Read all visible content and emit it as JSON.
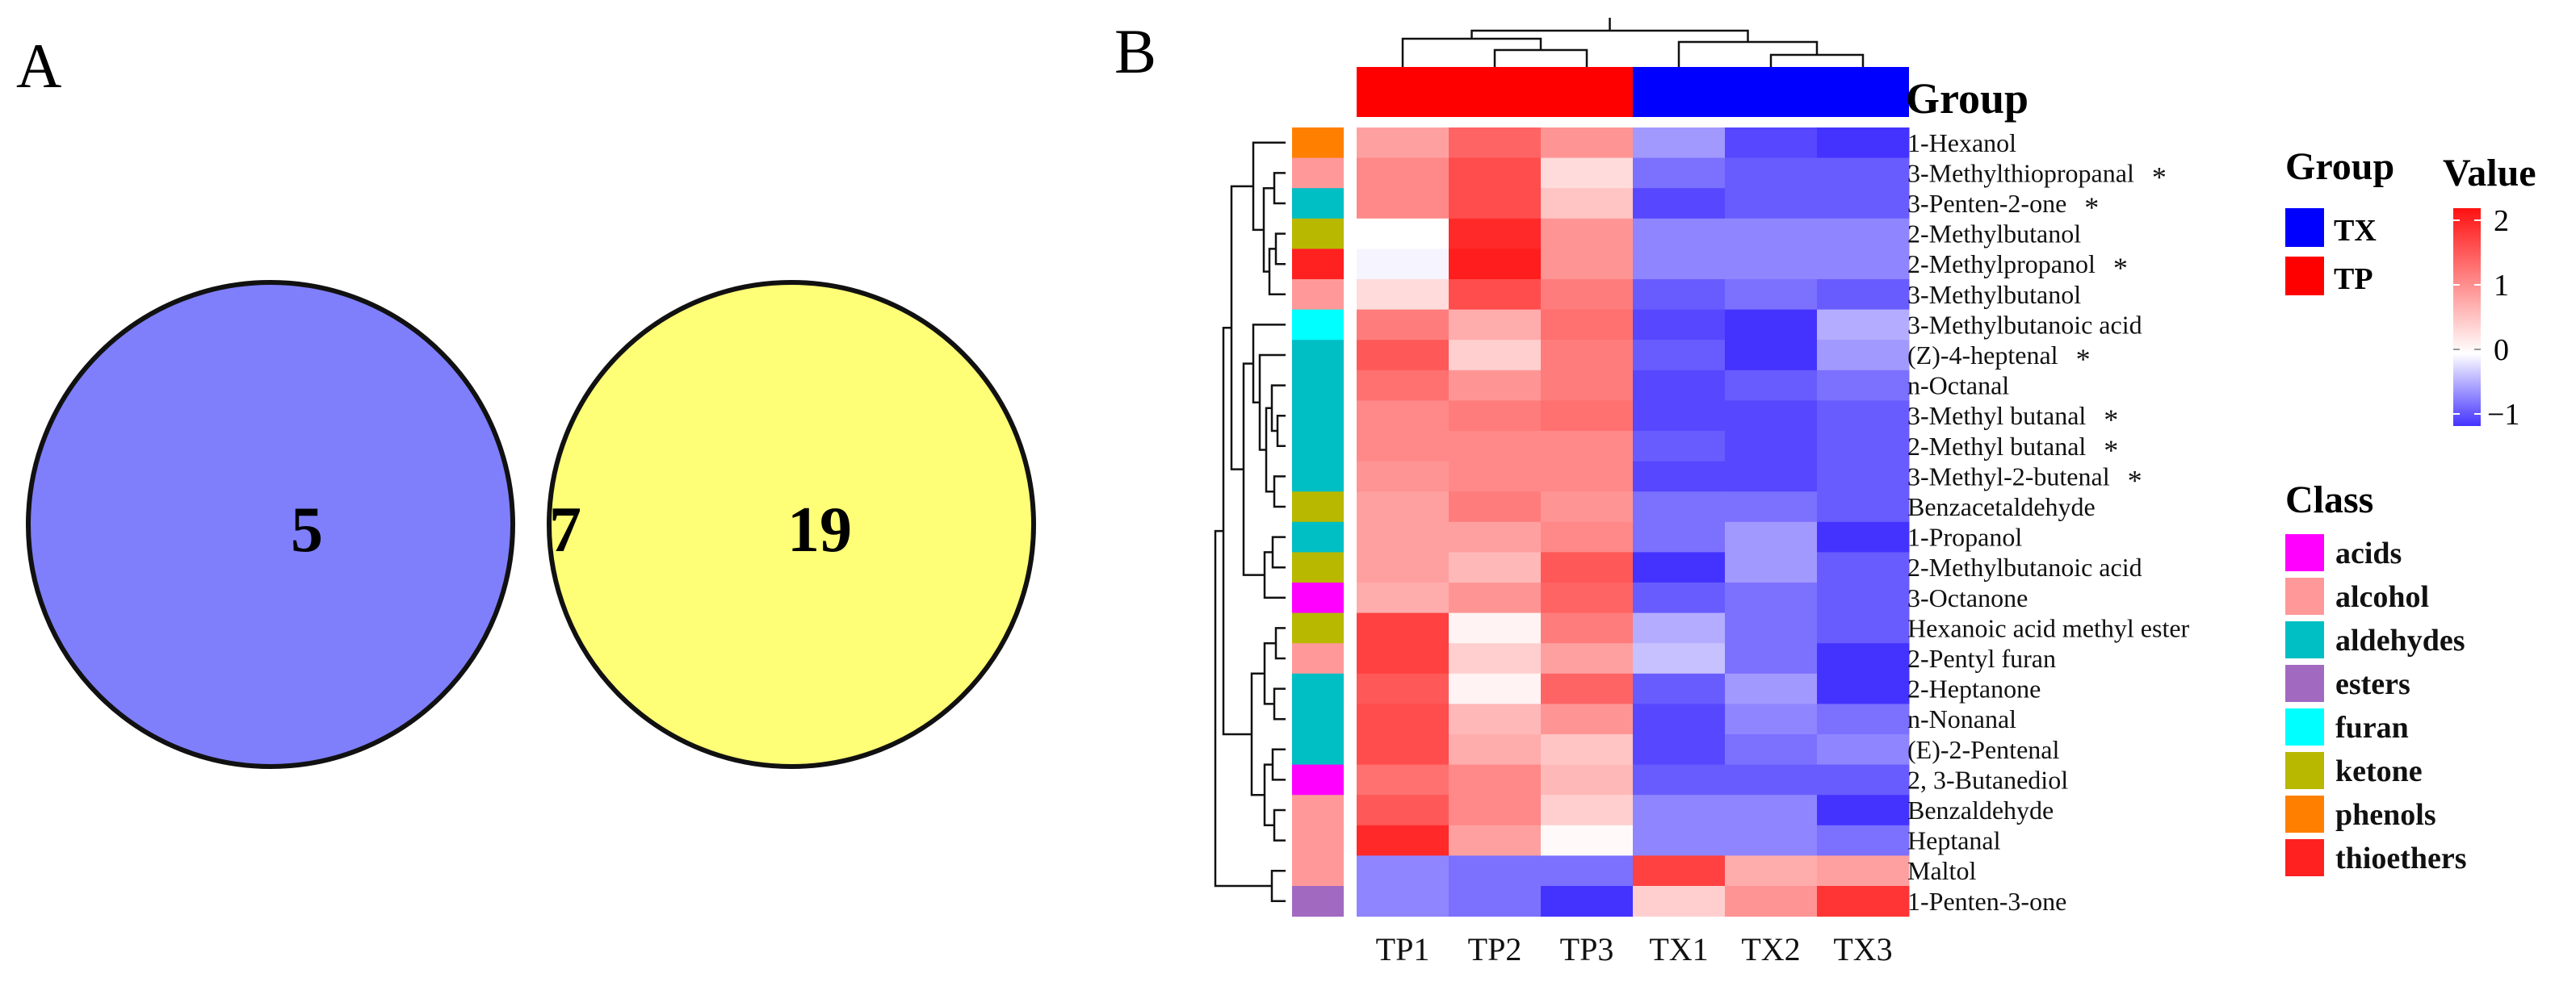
{
  "panels": {
    "a_label": "A",
    "b_label": "B"
  },
  "venn": {
    "left_only": "5",
    "overlap": "7",
    "right_only": "19",
    "left_color": "#7f7ffc",
    "right_color": "#ffff77",
    "overlap_color": "#bdbd80"
  },
  "chart_data": [
    {
      "type": "venn",
      "sets": [
        "left",
        "right"
      ],
      "regions": {
        "left_only": 5,
        "both": 7,
        "right_only": 19
      }
    },
    {
      "type": "heatmap",
      "columns": [
        "TP1",
        "TP2",
        "TP3",
        "TX1",
        "TX2",
        "TX3"
      ],
      "column_groups": [
        "TP",
        "TP",
        "TP",
        "TX",
        "TX",
        "TX"
      ],
      "rows": [
        "1-Hexanol",
        "3-Methylthiopropanal",
        "3-Penten-2-one",
        "2-Methylbutanol",
        "2-Methylpropanol",
        "3-Methylbutanol",
        "3-Methylbutanoic acid",
        "(Z)-4-heptenal",
        "n-Octanal",
        "3-Methyl butanal",
        "2-Methyl butanal",
        "3-Methyl-2-butenal",
        "Benzacetaldehyde",
        "1-Propanol",
        "2-Methylbutanoic acid",
        "3-Octanone",
        "Hexanoic acid methyl ester",
        "2-Pentyl furan",
        "2-Heptanone",
        "n-Nonanal",
        "(E)-2-Pentenal",
        "2, 3-Butanediol",
        "Benzaldehyde",
        "Heptanal",
        "Maltol",
        "1-Penten-3-one"
      ],
      "significant": [
        false,
        true,
        true,
        false,
        true,
        false,
        false,
        true,
        false,
        true,
        true,
        true,
        false,
        false,
        false,
        false,
        false,
        false,
        false,
        false,
        false,
        false,
        false,
        false,
        false,
        false
      ],
      "row_class": [
        "phenols",
        "alcohol",
        "aldehydes",
        "ketone",
        "thioethers",
        "alcohol",
        "furan",
        "aldehydes",
        "aldehydes",
        "aldehydes",
        "aldehydes",
        "aldehydes",
        "ketone",
        "aldehydes",
        "ketone",
        "acids",
        "ketone",
        "alcohol",
        "aldehydes",
        "aldehydes",
        "aldehydes",
        "acids",
        "alcohol",
        "alcohol",
        "alcohol",
        "esters"
      ],
      "values": [
        [
          0.8,
          1.3,
          0.9,
          -0.5,
          -0.9,
          -1.2
        ],
        [
          1.0,
          1.5,
          0.3,
          -0.7,
          -0.8,
          -0.8
        ],
        [
          1.0,
          1.5,
          0.5,
          -0.9,
          -0.8,
          -0.8
        ],
        [
          0.0,
          1.8,
          0.9,
          -0.6,
          -0.6,
          -0.6
        ],
        [
          -0.05,
          1.9,
          0.9,
          -0.6,
          -0.6,
          -0.6
        ],
        [
          0.3,
          1.5,
          1.1,
          -0.8,
          -0.7,
          -0.8
        ],
        [
          1.1,
          0.7,
          1.2,
          -0.9,
          -1.3,
          -0.4
        ],
        [
          1.4,
          0.4,
          1.1,
          -0.8,
          -1.0,
          -0.5
        ],
        [
          1.2,
          0.9,
          1.1,
          -0.9,
          -0.8,
          -0.7
        ],
        [
          1.0,
          1.1,
          1.2,
          -0.9,
          -0.9,
          -0.8
        ],
        [
          1.0,
          1.0,
          1.0,
          -0.8,
          -0.9,
          -0.8
        ],
        [
          0.9,
          1.0,
          1.0,
          -0.9,
          -0.9,
          -0.8
        ],
        [
          0.8,
          1.1,
          0.9,
          -0.7,
          -0.7,
          -0.8
        ],
        [
          0.8,
          0.8,
          1.0,
          -0.7,
          -0.5,
          -1.2
        ],
        [
          0.8,
          0.6,
          1.4,
          -1.0,
          -0.5,
          -0.8
        ],
        [
          0.7,
          0.9,
          1.3,
          -0.8,
          -0.7,
          -0.8
        ],
        [
          1.6,
          0.1,
          1.1,
          -0.4,
          -0.7,
          -0.8
        ],
        [
          1.6,
          0.4,
          0.8,
          -0.3,
          -0.7,
          -1.2
        ],
        [
          1.4,
          0.1,
          1.3,
          -0.8,
          -0.5,
          -1.2
        ],
        [
          1.5,
          0.6,
          0.9,
          -0.9,
          -0.6,
          -0.7
        ],
        [
          1.5,
          0.7,
          0.5,
          -0.9,
          -0.7,
          -0.6
        ],
        [
          1.2,
          1.0,
          0.6,
          -0.8,
          -0.8,
          -0.8
        ],
        [
          1.4,
          1.0,
          0.4,
          -0.6,
          -0.6,
          -1.0
        ],
        [
          1.8,
          0.8,
          0.05,
          -0.6,
          -0.6,
          -0.7
        ],
        [
          -0.6,
          -0.7,
          -0.7,
          1.6,
          0.7,
          0.8
        ],
        [
          -0.6,
          -0.7,
          -1.0,
          0.4,
          0.9,
          1.7
        ]
      ],
      "color_scale": {
        "min": -1,
        "mid": 0,
        "max": 2,
        "low": "#4433ff",
        "mid_color": "#ffffff",
        "high": "#ff1111"
      }
    }
  ],
  "heatmap": {
    "group_label": "Group",
    "star": "*",
    "group_colors": {
      "TP": "#ff0000",
      "TX": "#0000ff"
    }
  },
  "legend": {
    "group_title": "Group",
    "groups": [
      {
        "label": "TX",
        "color": "#0000ff"
      },
      {
        "label": "TP",
        "color": "#ff0000"
      }
    ],
    "value_title": "Value",
    "value_ticks": [
      "2",
      "1",
      "0",
      "−1"
    ],
    "class_title": "Class",
    "classes": [
      {
        "label": "acids",
        "color": "#ff00ff"
      },
      {
        "label": "alcohol",
        "color": "#ff9999"
      },
      {
        "label": "aldehydes",
        "color": "#00bfc4"
      },
      {
        "label": "esters",
        "color": "#a269c1"
      },
      {
        "label": "furan",
        "color": "#00ffff"
      },
      {
        "label": "ketone",
        "color": "#b8b800"
      },
      {
        "label": "phenols",
        "color": "#ff8000"
      },
      {
        "label": "thioethers",
        "color": "#ff2020"
      }
    ]
  }
}
